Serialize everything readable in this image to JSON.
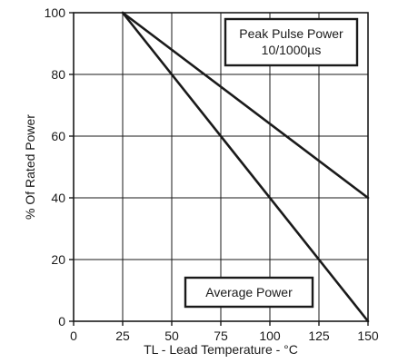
{
  "chart_data": {
    "type": "line",
    "xlabel": "TL - Lead Temperature - °C",
    "ylabel": "% Of Rated Power",
    "xlim": [
      0,
      150
    ],
    "ylim": [
      0,
      100
    ],
    "x_ticks": [
      0,
      25,
      50,
      75,
      100,
      125,
      150
    ],
    "y_ticks": [
      0,
      20,
      40,
      60,
      80,
      100
    ],
    "grid": true,
    "series": [
      {
        "name": "Peak Pulse Power 10/1000µs",
        "x": [
          25,
          150
        ],
        "y": [
          100,
          40
        ]
      },
      {
        "name": "Average Power",
        "x": [
          25,
          150
        ],
        "y": [
          100,
          0
        ]
      }
    ],
    "annotations": [
      {
        "id": "peak",
        "lines": [
          "Peak Pulse Power",
          "10/1000µs"
        ]
      },
      {
        "id": "average",
        "lines": [
          "Average Power"
        ]
      }
    ],
    "colors": {
      "line": "#1a1a1a",
      "grid": "#1a1a1a",
      "axis": "#1a1a1a"
    }
  }
}
